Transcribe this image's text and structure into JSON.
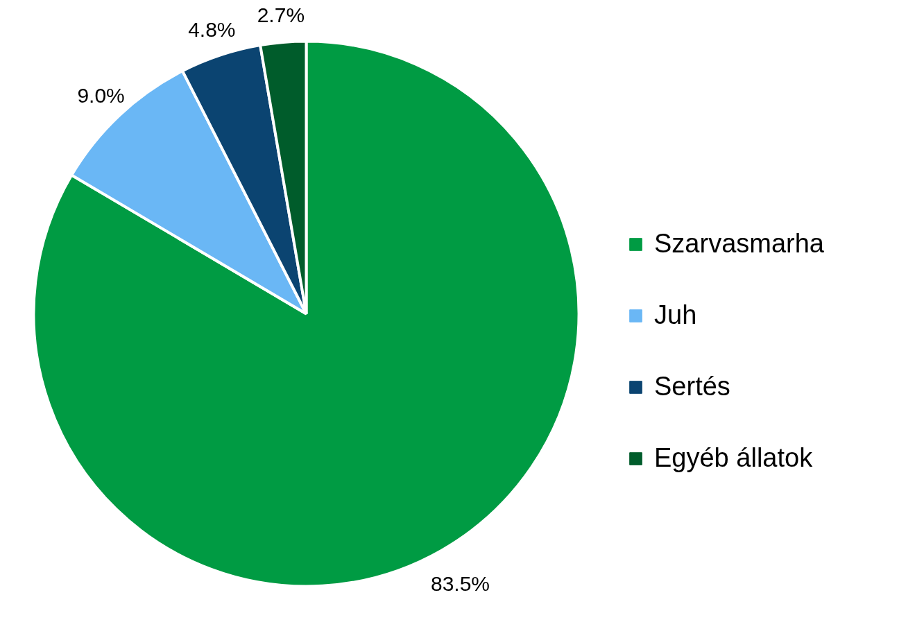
{
  "chart_data": {
    "type": "pie",
    "categories": [
      "Szarvasmarha",
      "Juh",
      "Sertés",
      "Egyéb állatok"
    ],
    "values": [
      83.5,
      9.0,
      4.8,
      2.7
    ],
    "colors": [
      "#009b43",
      "#6ab7f5",
      "#0b4471",
      "#005c2b"
    ],
    "value_labels": [
      "83.5%",
      "9.0%",
      "4.8%",
      "2.7%"
    ],
    "legend": "right"
  }
}
